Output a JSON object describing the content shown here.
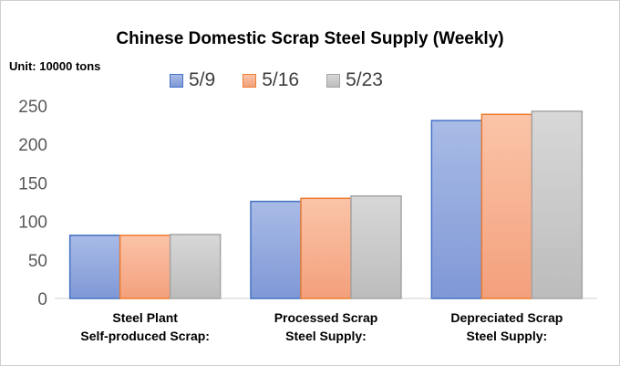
{
  "chart_data": {
    "type": "bar",
    "title": "Chinese Domestic Scrap Steel Supply (Weekly)",
    "unit_label": "Unit:  10000 tons",
    "categories": [
      [
        "Steel Plant",
        "Self-produced Scrap:"
      ],
      [
        "Processed Scrap",
        "Steel Supply:"
      ],
      [
        "Depreciated Scrap",
        "Steel Supply:"
      ]
    ],
    "series": [
      {
        "name": "5/9",
        "values": [
          82,
          126,
          231
        ],
        "color": "#8ea4dc",
        "stroke": "#4472c4"
      },
      {
        "name": "5/16",
        "values": [
          82,
          130,
          239
        ],
        "color": "#f5ad8a",
        "stroke": "#ed7d31"
      },
      {
        "name": "5/23",
        "values": [
          83,
          133,
          243
        ],
        "color": "#c8c8c8",
        "stroke": "#a5a5a5"
      }
    ],
    "ylim": [
      0,
      250
    ],
    "yticks": [
      0,
      50,
      100,
      150,
      200,
      250
    ],
    "legend_position": "top",
    "grid": false
  }
}
